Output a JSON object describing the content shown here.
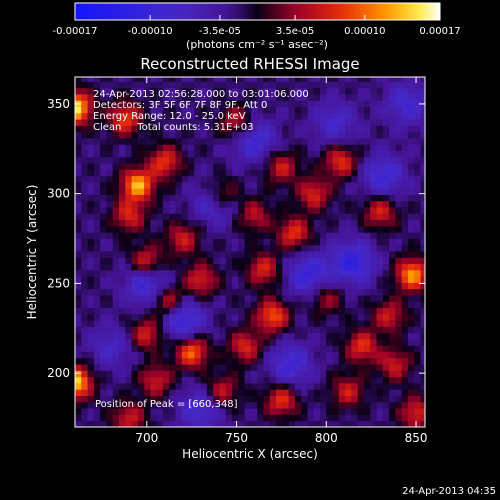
{
  "chart_data": {
    "type": "heatmap",
    "title": "Reconstructed RHESSI Image",
    "xlabel": "Heliocentric X (arcsec)",
    "ylabel": "Heliocentric Y (arcsec)",
    "xlim": [
      660,
      855
    ],
    "ylim": [
      170,
      365
    ],
    "x_ticks": [
      700,
      750,
      800,
      850
    ],
    "y_ticks": [
      200,
      250,
      300,
      350
    ],
    "colorbar": {
      "label": "(photons cm⁻² s⁻¹ asec⁻²)",
      "range": [
        -0.00017,
        0.00017
      ],
      "tick_labels": [
        "-0.00017",
        "-0.00010",
        "-3.5e-05",
        "3.5e-05",
        "0.00010",
        "0.00017"
      ],
      "tick_values": [
        -0.00017,
        -0.0001,
        -3.5e-05,
        3.5e-05,
        0.0001,
        0.00017
      ]
    },
    "annotations": [
      "24-Apr-2013 02:56:28.000 to 03:01:06.000",
      "Detectors: 3F 5F 6F 7F 8F 9F, Att 0",
      "Energy Range: 12.0 - 25.0 keV",
      "Clean     Total counts: 5.31E+03"
    ],
    "peak_label": "Position of Peak = [660,348]",
    "peak_position": [
      660,
      348
    ],
    "hotspots": [
      {
        "x": 660,
        "y": 348,
        "v": 1.0
      },
      {
        "x": 660,
        "y": 195,
        "v": 0.95
      },
      {
        "x": 695,
        "y": 305,
        "v": 0.85
      },
      {
        "x": 688,
        "y": 342,
        "v": 0.6
      },
      {
        "x": 710,
        "y": 318,
        "v": 0.55
      },
      {
        "x": 690,
        "y": 288,
        "v": 0.5
      },
      {
        "x": 700,
        "y": 262,
        "v": 0.55
      },
      {
        "x": 720,
        "y": 275,
        "v": 0.45
      },
      {
        "x": 712,
        "y": 240,
        "v": 0.55
      },
      {
        "x": 700,
        "y": 222,
        "v": 0.5
      },
      {
        "x": 725,
        "y": 212,
        "v": 0.7
      },
      {
        "x": 705,
        "y": 196,
        "v": 0.45
      },
      {
        "x": 742,
        "y": 190,
        "v": 0.45
      },
      {
        "x": 775,
        "y": 185,
        "v": 0.55
      },
      {
        "x": 755,
        "y": 215,
        "v": 0.5
      },
      {
        "x": 770,
        "y": 232,
        "v": 0.65
      },
      {
        "x": 765,
        "y": 258,
        "v": 0.5
      },
      {
        "x": 782,
        "y": 278,
        "v": 0.55
      },
      {
        "x": 793,
        "y": 300,
        "v": 0.5
      },
      {
        "x": 775,
        "y": 315,
        "v": 0.45
      },
      {
        "x": 808,
        "y": 318,
        "v": 0.55
      },
      {
        "x": 830,
        "y": 290,
        "v": 0.5
      },
      {
        "x": 848,
        "y": 255,
        "v": 0.8
      },
      {
        "x": 835,
        "y": 232,
        "v": 0.45
      },
      {
        "x": 820,
        "y": 215,
        "v": 0.55
      },
      {
        "x": 838,
        "y": 205,
        "v": 0.45
      },
      {
        "x": 812,
        "y": 190,
        "v": 0.45
      },
      {
        "x": 750,
        "y": 340,
        "v": 0.45
      },
      {
        "x": 742,
        "y": 300,
        "v": 0.45
      },
      {
        "x": 730,
        "y": 252,
        "v": 0.5
      },
      {
        "x": 690,
        "y": 175,
        "v": 0.45
      },
      {
        "x": 850,
        "y": 178,
        "v": 0.5
      },
      {
        "x": 800,
        "y": 242,
        "v": 0.35
      },
      {
        "x": 760,
        "y": 288,
        "v": 0.4
      }
    ],
    "cold_spots": [
      {
        "x": 700,
        "y": 250,
        "v": -0.5
      },
      {
        "x": 720,
        "y": 230,
        "v": -0.55
      },
      {
        "x": 738,
        "y": 295,
        "v": -0.4
      },
      {
        "x": 760,
        "y": 330,
        "v": -0.45
      },
      {
        "x": 790,
        "y": 255,
        "v": -0.5
      },
      {
        "x": 815,
        "y": 262,
        "v": -0.55
      },
      {
        "x": 832,
        "y": 310,
        "v": -0.45
      },
      {
        "x": 845,
        "y": 350,
        "v": -0.4
      },
      {
        "x": 780,
        "y": 205,
        "v": -0.45
      },
      {
        "x": 730,
        "y": 180,
        "v": -0.4
      },
      {
        "x": 805,
        "y": 340,
        "v": -0.35
      },
      {
        "x": 680,
        "y": 215,
        "v": -0.3
      }
    ]
  },
  "footer": {
    "timestamp": "24-Apr-2013 04:35"
  }
}
